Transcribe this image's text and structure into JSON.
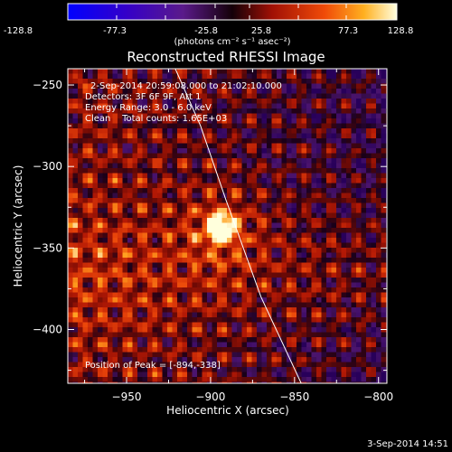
{
  "colorbar": {
    "tick_labels": [
      "-128.8",
      "-77.3",
      "-25.8",
      "25.8",
      "77.3",
      "128.8"
    ],
    "units": "(photons cm⁻² s⁻¹ asec⁻²)",
    "range": [
      -128.8,
      128.8
    ]
  },
  "chart_data": {
    "type": "heatmap",
    "title": "Reconstructed RHESSI Image",
    "xlabel": "Heliocentric X (arcsec)",
    "ylabel": "Heliocentric Y (arcsec)",
    "xlim": [
      -985,
      -795
    ],
    "ylim": [
      -433,
      -240
    ],
    "x_ticks": [
      -950,
      -900,
      -850,
      -800
    ],
    "y_ticks": [
      -250,
      -300,
      -350,
      -400
    ],
    "x_tick_labels": [
      "−950",
      "−900",
      "−850",
      "−800"
    ],
    "y_tick_labels": [
      "−250",
      "−300",
      "−350",
      "−400"
    ],
    "peak": {
      "x": -894,
      "y": -338
    },
    "limb_line": [
      [
        -921,
        -240
      ],
      [
        -906,
        -275
      ],
      [
        -891,
        -320
      ],
      [
        -870,
        -380
      ],
      [
        -846,
        -433
      ]
    ],
    "annotations": [
      "2-Sep-2014 20:59:08.000 to 21:02:10.000",
      "Detectors: 3F 6F 9F, Att 1",
      "Energy Range: 3.0 - 6.0 keV",
      "Clean    Total counts: 1.65E+03",
      "Position of Peak = [-894,-338]"
    ]
  },
  "timestamp": "3-Sep-2014 14:51"
}
